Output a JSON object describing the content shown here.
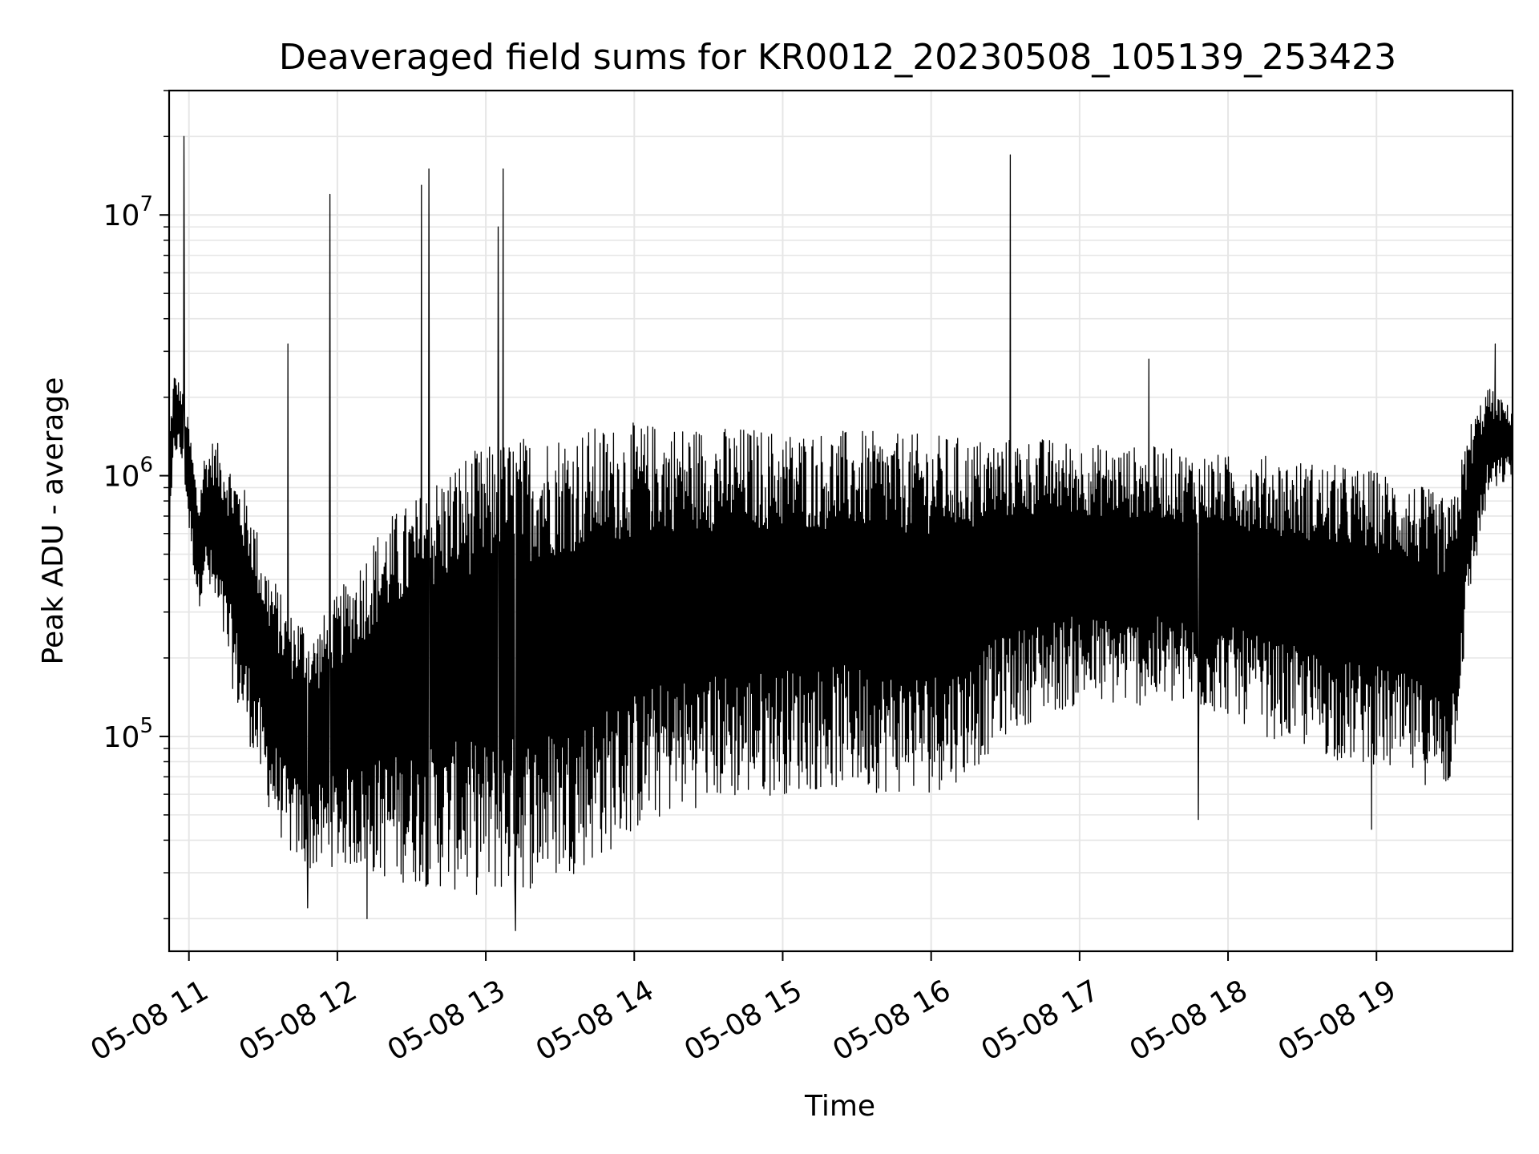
{
  "chart_data": {
    "type": "line",
    "title": "Deaveraged field sums for KR0012_20230508_105139_253423",
    "xlabel": "Time",
    "ylabel": "Peak ADU - average",
    "y_scale": "log",
    "xlim": [
      "2023-05-08 10:52",
      "2023-05-08 19:55"
    ],
    "ylim": [
      15000,
      30000000
    ],
    "grid": true,
    "line_color": "#000000",
    "grid_color": "#e6e6e6",
    "x_ticks": [
      {
        "value": "2023-05-08 11:00",
        "label": "05-08 11"
      },
      {
        "value": "2023-05-08 12:00",
        "label": "05-08 12"
      },
      {
        "value": "2023-05-08 13:00",
        "label": "05-08 13"
      },
      {
        "value": "2023-05-08 14:00",
        "label": "05-08 14"
      },
      {
        "value": "2023-05-08 15:00",
        "label": "05-08 15"
      },
      {
        "value": "2023-05-08 16:00",
        "label": "05-08 16"
      },
      {
        "value": "2023-05-08 17:00",
        "label": "05-08 17"
      },
      {
        "value": "2023-05-08 18:00",
        "label": "05-08 18"
      },
      {
        "value": "2023-05-08 19:00",
        "label": "05-08 19"
      }
    ],
    "y_ticks": [
      {
        "value": 100000,
        "base": "10",
        "exp": "5"
      },
      {
        "value": 1000000,
        "base": "10",
        "exp": "6"
      },
      {
        "value": 10000000,
        "base": "10",
        "exp": "7"
      }
    ],
    "series": [
      {
        "x": [
          "2023-05-08 10:52",
          "2023-05-08 10:54",
          "2023-05-08 10:56",
          "2023-05-08 10:58",
          "2023-05-08 11:00",
          "2023-05-08 11:04",
          "2023-05-08 11:06",
          "2023-05-08 11:10",
          "2023-05-08 11:15",
          "2023-05-08 11:20",
          "2023-05-08 11:25",
          "2023-05-08 11:30",
          "2023-05-08 11:35",
          "2023-05-08 11:40",
          "2023-05-08 11:45",
          "2023-05-08 11:50",
          "2023-05-08 11:55",
          "2023-05-08 12:00",
          "2023-05-08 12:10",
          "2023-05-08 12:20",
          "2023-05-08 12:30",
          "2023-05-08 12:40",
          "2023-05-08 12:50",
          "2023-05-08 13:00",
          "2023-05-08 13:10",
          "2023-05-08 13:20",
          "2023-05-08 13:30",
          "2023-05-08 13:45",
          "2023-05-08 14:00",
          "2023-05-08 14:15",
          "2023-05-08 14:30",
          "2023-05-08 14:45",
          "2023-05-08 15:00",
          "2023-05-08 15:15",
          "2023-05-08 15:30",
          "2023-05-08 15:45",
          "2023-05-08 16:00",
          "2023-05-08 16:15",
          "2023-05-08 16:30",
          "2023-05-08 16:45",
          "2023-05-08 17:00",
          "2023-05-08 17:15",
          "2023-05-08 17:30",
          "2023-05-08 17:45",
          "2023-05-08 18:00",
          "2023-05-08 18:15",
          "2023-05-08 18:30",
          "2023-05-08 18:45",
          "2023-05-08 19:00",
          "2023-05-08 19:10",
          "2023-05-08 19:20",
          "2023-05-08 19:30",
          "2023-05-08 19:38",
          "2023-05-08 19:45",
          "2023-05-08 19:55"
        ],
        "high": [
          1500000,
          2500000,
          2300000,
          2000000,
          1600000,
          800000,
          1200000,
          1400000,
          1200000,
          1000000,
          800000,
          500000,
          400000,
          300000,
          300000,
          250000,
          300000,
          350000,
          500000,
          700000,
          800000,
          1000000,
          1200000,
          1300000,
          1400000,
          1450000,
          1500000,
          1550000,
          1600000,
          1600000,
          1550000,
          1550000,
          1500000,
          1500000,
          1500000,
          1450000,
          1450000,
          1400000,
          1400000,
          1400000,
          1350000,
          1300000,
          1300000,
          1250000,
          1200000,
          1200000,
          1150000,
          1100000,
          1050000,
          1000000,
          900000,
          800000,
          1600000,
          2200000,
          1800000
        ],
        "low": [
          400000,
          1200000,
          1200000,
          1000000,
          600000,
          300000,
          400000,
          300000,
          200000,
          120000,
          90000,
          60000,
          45000,
          35000,
          32000,
          30000,
          31000,
          32000,
          30000,
          28000,
          27000,
          26000,
          25000,
          24000,
          25000,
          26000,
          28000,
          33000,
          42000,
          50000,
          55000,
          57000,
          60000,
          62000,
          62000,
          60000,
          60000,
          70000,
          100000,
          120000,
          130000,
          130000,
          130000,
          125000,
          120000,
          100000,
          90000,
          80000,
          75000,
          70000,
          65000,
          60000,
          350000,
          800000,
          1000000
        ],
        "spikes": [
          {
            "x": "2023-05-08 10:58",
            "y": 20000000
          },
          {
            "x": "2023-05-08 11:40",
            "y": 3200000
          },
          {
            "x": "2023-05-08 11:57",
            "y": 12000000
          },
          {
            "x": "2023-05-08 12:34",
            "y": 13000000
          },
          {
            "x": "2023-05-08 12:37",
            "y": 15000000
          },
          {
            "x": "2023-05-08 13:05",
            "y": 9000000
          },
          {
            "x": "2023-05-08 13:07",
            "y": 15000000
          },
          {
            "x": "2023-05-08 16:32",
            "y": 17000000
          },
          {
            "x": "2023-05-08 17:28",
            "y": 2800000
          },
          {
            "x": "2023-05-08 19:48",
            "y": 3200000
          },
          {
            "x": "2023-05-08 11:48",
            "y": 22000
          },
          {
            "x": "2023-05-08 12:12",
            "y": 20000
          },
          {
            "x": "2023-05-08 13:12",
            "y": 18000
          },
          {
            "x": "2023-05-08 17:48",
            "y": 48000
          },
          {
            "x": "2023-05-08 18:58",
            "y": 44000
          }
        ]
      }
    ]
  }
}
